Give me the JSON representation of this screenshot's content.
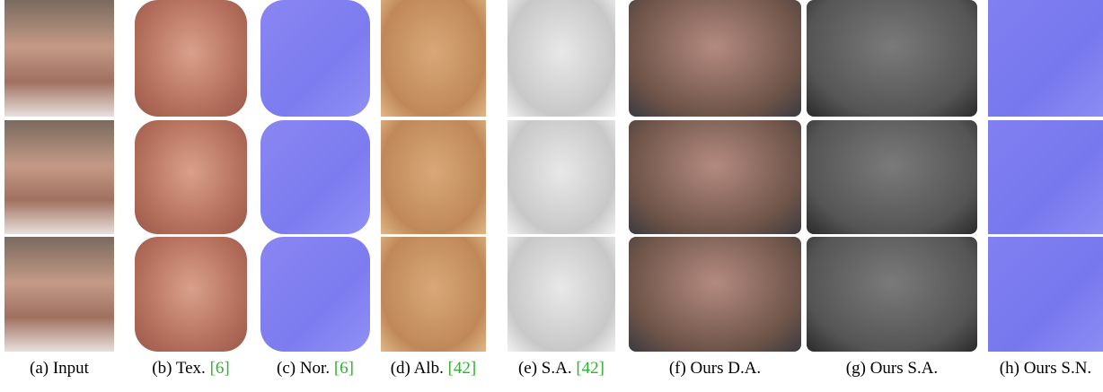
{
  "figure": {
    "columns": [
      {
        "label": "(a) Input"
      },
      {
        "label": "(b) Tex.",
        "ref": "[6]"
      },
      {
        "label": "(c) Nor.",
        "ref": "[6]"
      },
      {
        "label": "(d) Alb.",
        "ref": "[42]"
      },
      {
        "label": "(e) S.A.",
        "ref": "[42]"
      },
      {
        "label": "(f) Ours D.A."
      },
      {
        "label": "(g) Ours S.A."
      },
      {
        "label": "(h) Ours S.N."
      }
    ]
  }
}
